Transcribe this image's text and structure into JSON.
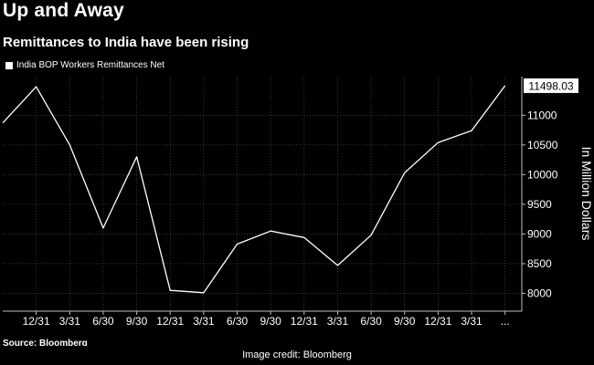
{
  "header": {
    "title": "Up and Away",
    "subtitle": "Remittances to India have been rising"
  },
  "footer": {
    "source": "Source: Bloomberg",
    "credit": "Image credit: Bloomberg"
  },
  "chart_data": {
    "type": "line",
    "title": "Up and Away",
    "subtitle": "Remittances to India have been rising",
    "ylabel": "In Million Dollars",
    "xlabel": "",
    "ylim": [
      7700,
      11650
    ],
    "yticks": [
      8000,
      8500,
      9000,
      9500,
      10000,
      10500,
      11000
    ],
    "categories": [
      "",
      "12/31",
      "3/31",
      "6/30",
      "9/30",
      "12/31",
      "3/31",
      "6/30",
      "9/30",
      "12/31",
      "3/31",
      "6/30",
      "9/30",
      "12/31",
      "3/31",
      "..."
    ],
    "series": [
      {
        "name": "India BOP Workers Remittances Net",
        "values": [
          10870,
          11480,
          10500,
          9100,
          10300,
          8050,
          8010,
          8830,
          9050,
          8940,
          8470,
          8980,
          10030,
          10540,
          10740,
          11498.03
        ]
      }
    ],
    "last_value_label": "11498.03",
    "grid": true,
    "legend": "top-left",
    "colors": {
      "background": "#000000",
      "line": "#ffffff",
      "grid": "#555555"
    }
  }
}
